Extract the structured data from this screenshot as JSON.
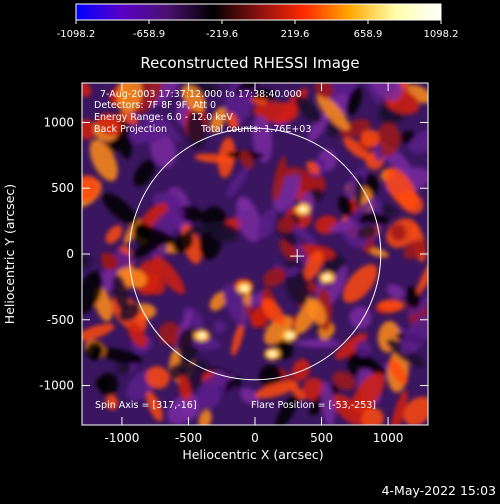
{
  "chart_data": {
    "type": "heatmap",
    "title": "Reconstructed RHESSI Image",
    "xlabel": "Heliocentric X (arcsec)",
    "ylabel": "Heliocentric Y (arcsec)",
    "xlim": [
      -1300,
      1300
    ],
    "ylim": [
      -1300,
      1300
    ],
    "xticks": [
      -1000,
      -500,
      0,
      500,
      1000
    ],
    "yticks": [
      -1000,
      -500,
      0,
      500,
      1000
    ],
    "colorbar": {
      "min": -1098.2,
      "max": 1098.2,
      "tick_values": [
        -1098.2,
        -658.9,
        -219.6,
        219.6,
        658.9,
        1098.2
      ],
      "tick_labels": [
        "-1098.2",
        "-658.9",
        "-219.6",
        "219.6",
        "658.9",
        "1098.2"
      ],
      "colors": [
        "#0000ff",
        "#5a00c8",
        "#4a1070",
        "#000000",
        "#8a1010",
        "#ff2a00",
        "#ffa800",
        "#ffffaa",
        "#ffffff"
      ]
    },
    "annotations": [
      "7-Aug-2003 17:37:12.000 to 17:38:40.000",
      "Detectors: 7F 8F 9F, Att 0",
      "Energy Range: 6.0 - 12.0 keV",
      "Back Projection",
      "Total counts: 1.76E+03"
    ],
    "spin_axis_label": "Spin Axis = [317,-16]",
    "spin_axis": [
      317,
      -16
    ],
    "flare_position_label": "Flare Position = [-53,-253]",
    "flare_position": [
      -53,
      -253
    ],
    "solar_limb_radius": 945,
    "grid": false
  },
  "footer": {
    "timestamp": "4-May-2022 15:03"
  }
}
